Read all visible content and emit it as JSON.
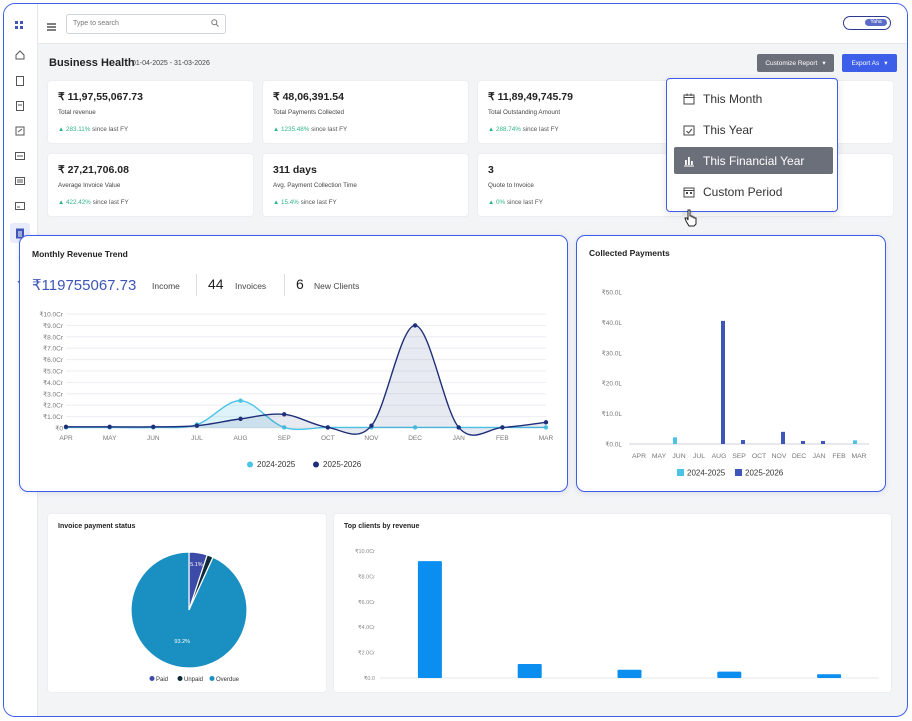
{
  "topbar": {
    "search_placeholder": "Type to search",
    "toggle_label": "Yaha"
  },
  "page": {
    "title": "Business Health",
    "date_range": "01-04-2025 - 31-03-2026"
  },
  "actions": {
    "customize_label": "Customize Report",
    "export_label": "Export As"
  },
  "kpis": [
    {
      "value": "₹ 11,97,55,067.73",
      "label": "Total revenue",
      "delta": "283.11%",
      "since": "since last FY"
    },
    {
      "value": "₹ 48,06,391.54",
      "label": "Total Payments Collected",
      "delta": "1235.48%",
      "since": "since last FY"
    },
    {
      "value": "₹ 11,89,49,745.79",
      "label": "Total Outstanding Amount",
      "delta": "288.74%",
      "since": "since last FY"
    },
    {
      "value": "₹ 27,21,706.08",
      "label": "Average Invoice Value",
      "delta": "422.42%",
      "since": "since last FY"
    },
    {
      "value": "311 days",
      "label": "Avg. Payment Collection Time",
      "delta": "15.4%",
      "since": "since last FY"
    },
    {
      "value": "3",
      "label": "Quote to Invoice",
      "delta": "0%",
      "since": "since last FY"
    }
  ],
  "dropdown": {
    "items": [
      {
        "label": "This Month",
        "icon": "calendar-icon"
      },
      {
        "label": "This Year",
        "icon": "calendar-check-icon"
      },
      {
        "label": "This Financial Year",
        "icon": "chart-hand-icon",
        "selected": true
      },
      {
        "label": "Custom Period",
        "icon": "calendar-range-icon"
      }
    ]
  },
  "revenue_trend": {
    "title": "Monthly Revenue Trend",
    "income_value": "₹119755067.73",
    "income_label": "Income",
    "invoices_value": "44",
    "invoices_label": "Invoices",
    "clients_value": "6",
    "clients_label": "New Clients"
  },
  "collected": {
    "title": "Collected Payments"
  },
  "invoice_status": {
    "title": "Invoice payment status"
  },
  "top_clients": {
    "title": "Top clients by revenue"
  },
  "chart_data": [
    {
      "type": "area",
      "title": "Monthly Revenue Trend",
      "categories": [
        "APR",
        "MAY",
        "JUN",
        "JUL",
        "AUG",
        "SEP",
        "OCT",
        "NOV",
        "DEC",
        "JAN",
        "FEB",
        "MAR"
      ],
      "y_tick_labels": [
        "₹0",
        "₹1.0Cr",
        "₹2.0Cr",
        "₹3.0Cr",
        "₹4.0Cr",
        "₹5.0Cr",
        "₹6.0Cr",
        "₹7.0Cr",
        "₹8.0Cr",
        "₹9.0Cr",
        "₹10.0Cr"
      ],
      "ylim": [
        0,
        10
      ],
      "unit": "Cr",
      "series": [
        {
          "name": "2024-2025",
          "color": "#4cc3e6",
          "values": [
            0.05,
            0.05,
            0.05,
            0.3,
            2.4,
            0.05,
            0.05,
            0.05,
            0.05,
            0.05,
            0.05,
            0.05
          ]
        },
        {
          "name": "2025-2026",
          "color": "#1e2f7a",
          "values": [
            0.1,
            0.1,
            0.1,
            0.2,
            0.8,
            1.2,
            0.05,
            0.2,
            9.0,
            0.05,
            0.05,
            0.5
          ]
        }
      ]
    },
    {
      "type": "bar",
      "title": "Collected Payments",
      "categories": [
        "APR",
        "MAY",
        "JUN",
        "JUL",
        "AUG",
        "SEP",
        "OCT",
        "NOV",
        "DEC",
        "JAN",
        "FEB",
        "MAR"
      ],
      "y_tick_labels": [
        "₹0.0L",
        "₹10.0L",
        "₹20.0L",
        "₹30.0L",
        "₹40.0L",
        "₹50.0L"
      ],
      "ylim": [
        0,
        50
      ],
      "unit": "L",
      "series": [
        {
          "name": "2024-2025",
          "color": "#4cc3e6",
          "values": [
            0,
            0,
            2.2,
            0,
            0,
            0,
            0,
            0,
            0,
            0,
            0,
            1.2
          ]
        },
        {
          "name": "2025-2026",
          "color": "#3d56b8",
          "values": [
            0,
            0,
            0,
            0,
            40.5,
            1.3,
            0,
            4.0,
            1.0,
            1.0,
            0,
            0
          ]
        }
      ]
    },
    {
      "type": "pie",
      "title": "Invoice payment status",
      "labels": [
        "Paid",
        "Unpaid",
        "Overdue"
      ],
      "values": [
        5.1,
        1.7,
        93.2
      ],
      "slice_labels": [
        "5.1%",
        "",
        "93.2%"
      ],
      "colors": [
        "#3c4aa8",
        "#0f2b3a",
        "#1a8fc1"
      ]
    },
    {
      "type": "bar",
      "title": "Top clients by revenue",
      "categories": [
        "",
        "",
        "",
        "",
        ""
      ],
      "y_tick_labels": [
        "₹0.0",
        "₹2.0Cr",
        "₹4.0Cr",
        "₹6.0Cr",
        "₹8.0Cr",
        "₹10.0Cr"
      ],
      "ylim": [
        0,
        10
      ],
      "unit": "Cr",
      "values": [
        9.2,
        1.1,
        0.65,
        0.5,
        0.3
      ],
      "color": "#0a8ff0"
    }
  ]
}
